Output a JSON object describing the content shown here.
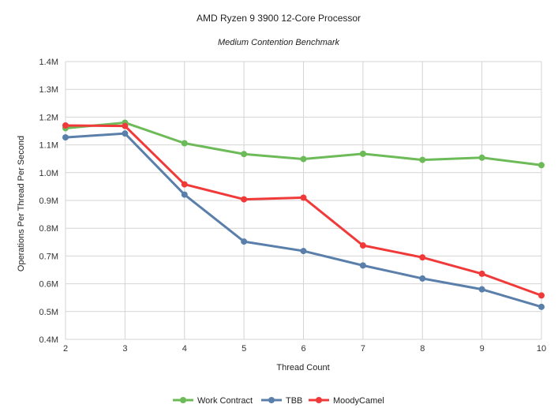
{
  "chart_data": {
    "type": "line",
    "title": "AMD Ryzen 9 3900 12-Core Processor",
    "subtitle": "Medium Contention Benchmark",
    "xlabel": "Thread Count",
    "ylabel": "Operations Per Thread Per Second",
    "x": [
      2,
      3,
      4,
      5,
      6,
      7,
      8,
      9,
      10
    ],
    "x_tick_labels": [
      "2",
      "3",
      "4",
      "5",
      "6",
      "7",
      "8",
      "9",
      "10"
    ],
    "ylim": [
      0.4,
      1.4
    ],
    "y_ticks": [
      0.4,
      0.5,
      0.6,
      0.7,
      0.8,
      0.9,
      1.0,
      1.1,
      1.2,
      1.3,
      1.4
    ],
    "y_tick_labels": [
      "0.4M",
      "0.5M",
      "0.6M",
      "0.7M",
      "0.8M",
      "0.9M",
      "1.0M",
      "1.1M",
      "1.2M",
      "1.3M",
      "1.4M"
    ],
    "grid": true,
    "legend_position": "bottom",
    "series": [
      {
        "name": "Work Contract",
        "color": "#6dbb58",
        "values": [
          1.16,
          1.18,
          1.106,
          1.067,
          1.049,
          1.068,
          1.046,
          1.054,
          1.027
        ]
      },
      {
        "name": "TBB",
        "color": "#5a7fab",
        "values": [
          1.127,
          1.141,
          0.921,
          0.752,
          0.718,
          0.666,
          0.619,
          0.58,
          0.517
        ]
      },
      {
        "name": "MoodyCamel",
        "color": "#f03a3a",
        "values": [
          1.17,
          1.168,
          0.958,
          0.904,
          0.91,
          0.738,
          0.695,
          0.636,
          0.558
        ]
      }
    ]
  }
}
